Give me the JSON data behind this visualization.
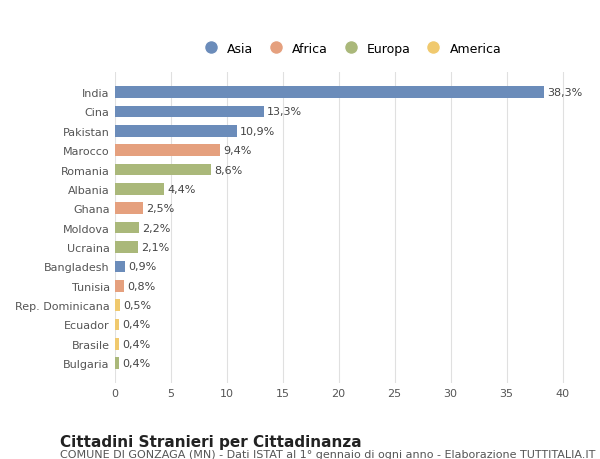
{
  "countries": [
    "India",
    "Cina",
    "Pakistan",
    "Marocco",
    "Romania",
    "Albania",
    "Ghana",
    "Moldova",
    "Ucraina",
    "Bangladesh",
    "Tunisia",
    "Rep. Dominicana",
    "Ecuador",
    "Brasile",
    "Bulgaria"
  ],
  "values": [
    38.3,
    13.3,
    10.9,
    9.4,
    8.6,
    4.4,
    2.5,
    2.2,
    2.1,
    0.9,
    0.8,
    0.5,
    0.4,
    0.4,
    0.4
  ],
  "labels": [
    "38,3%",
    "13,3%",
    "10,9%",
    "9,4%",
    "8,6%",
    "4,4%",
    "2,5%",
    "2,2%",
    "2,1%",
    "0,9%",
    "0,8%",
    "0,5%",
    "0,4%",
    "0,4%",
    "0,4%"
  ],
  "continents": [
    "Asia",
    "Asia",
    "Asia",
    "Africa",
    "Europa",
    "Europa",
    "Africa",
    "Europa",
    "Europa",
    "Asia",
    "Africa",
    "America",
    "America",
    "America",
    "Europa"
  ],
  "colors": {
    "Asia": "#6b8cba",
    "Africa": "#e5a07e",
    "Europa": "#aab87a",
    "America": "#f0c96e"
  },
  "legend_order": [
    "Asia",
    "Africa",
    "Europa",
    "America"
  ],
  "title": "Cittadini Stranieri per Cittadinanza",
  "subtitle": "COMUNE DI GONZAGA (MN) - Dati ISTAT al 1° gennaio di ogni anno - Elaborazione TUTTITALIA.IT",
  "xlim": [
    0,
    42
  ],
  "xticks": [
    0,
    5,
    10,
    15,
    20,
    25,
    30,
    35,
    40
  ],
  "bg_color": "#ffffff",
  "grid_color": "#e0e0e0",
  "bar_height": 0.6,
  "title_fontsize": 11,
  "subtitle_fontsize": 8,
  "label_fontsize": 8,
  "tick_fontsize": 8,
  "legend_fontsize": 9
}
